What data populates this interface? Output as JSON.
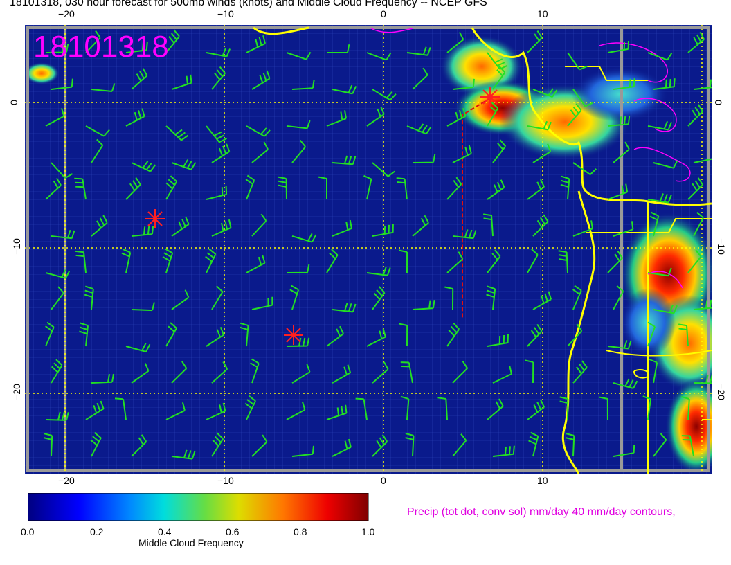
{
  "header": {
    "title": "18101318, 030 hour forecast for 500mb winds (knots) and Middle Cloud Frequency -- NCEP GFS",
    "stamp": "18101318"
  },
  "map": {
    "type": "heatmap",
    "region": "Eastern tropical Atlantic / West Africa coast",
    "lon_ticks": [
      "−20",
      "−10",
      "0",
      "10"
    ],
    "lat_ticks_left": [
      "0",
      "−10",
      "−20"
    ],
    "lat_ticks_right": [
      "0",
      "−10",
      "−20"
    ],
    "gridlines": "dotted yellow at 10 degree spacing",
    "overlays": [
      "500mb wind barbs (green)",
      "coastlines (yellow)",
      "precip contours (magenta)",
      "storm markers (red asterisks)"
    ],
    "colors": {
      "ocean_base": "#0a1a8c",
      "barb": "#22e022",
      "coast": "#ffff00",
      "grid": "#ffff00",
      "marker": "#ff2020",
      "precip": "#ff00ff"
    }
  },
  "colorbar": {
    "ticks": [
      "0.0",
      "0.2",
      "0.4",
      "0.6",
      "0.8",
      "1.0"
    ],
    "label": "Middle Cloud Frequency"
  },
  "precip_note": "Precip (tot dot, conv sol) mm/day 40 mm/day contours,"
}
